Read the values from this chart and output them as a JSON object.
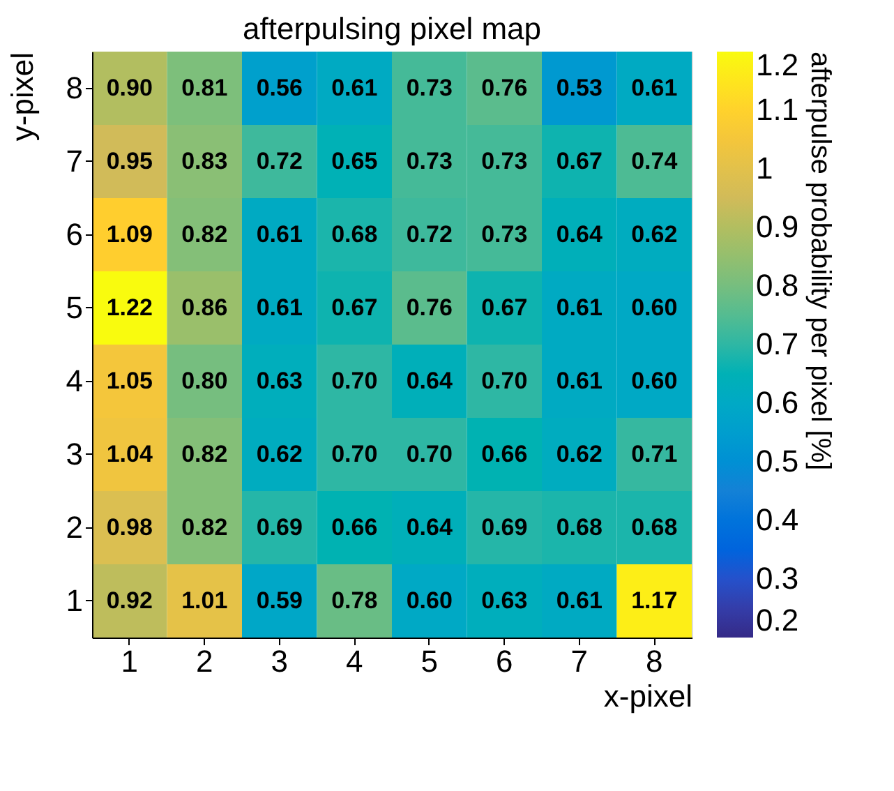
{
  "chart_data": {
    "type": "heatmap",
    "title": "afterpulsing pixel map",
    "xlabel": "x-pixel",
    "ylabel": "y-pixel",
    "clabel": "afterpulse probability per pixel  [%]",
    "categories": [
      "1",
      "2",
      "3",
      "4",
      "5",
      "6",
      "7",
      "8"
    ],
    "y_categories": [
      "8",
      "7",
      "6",
      "5",
      "4",
      "3",
      "2",
      "1"
    ],
    "cells": [
      [
        0.9,
        0.81,
        0.56,
        0.61,
        0.73,
        0.76,
        0.53,
        0.61
      ],
      [
        0.95,
        0.83,
        0.72,
        0.65,
        0.73,
        0.73,
        0.67,
        0.74
      ],
      [
        1.09,
        0.82,
        0.61,
        0.68,
        0.72,
        0.73,
        0.64,
        0.62
      ],
      [
        1.22,
        0.86,
        0.61,
        0.67,
        0.76,
        0.67,
        0.61,
        0.6
      ],
      [
        1.05,
        0.8,
        0.63,
        0.7,
        0.64,
        0.7,
        0.61,
        0.6
      ],
      [
        1.04,
        0.82,
        0.62,
        0.7,
        0.7,
        0.66,
        0.62,
        0.71
      ],
      [
        0.98,
        0.82,
        0.69,
        0.66,
        0.64,
        0.69,
        0.68,
        0.68
      ],
      [
        0.92,
        1.01,
        0.59,
        0.78,
        0.6,
        0.63,
        0.61,
        1.17
      ]
    ],
    "cell_labels": [
      [
        "0.90",
        "0.81",
        "0.56",
        "0.61",
        "0.73",
        "0.76",
        "0.53",
        "0.61"
      ],
      [
        "0.95",
        "0.83",
        "0.72",
        "0.65",
        "0.73",
        "0.73",
        "0.67",
        "0.74"
      ],
      [
        "1.09",
        "0.82",
        "0.61",
        "0.68",
        "0.72",
        "0.73",
        "0.64",
        "0.62"
      ],
      [
        "1.22",
        "0.86",
        "0.61",
        "0.67",
        "0.76",
        "0.67",
        "0.61",
        "0.60"
      ],
      [
        "1.05",
        "0.80",
        "0.63",
        "0.70",
        "0.64",
        "0.70",
        "0.61",
        "0.60"
      ],
      [
        "1.04",
        "0.82",
        "0.62",
        "0.70",
        "0.70",
        "0.66",
        "0.62",
        "0.71"
      ],
      [
        "0.98",
        "0.82",
        "0.69",
        "0.66",
        "0.64",
        "0.69",
        "0.68",
        "0.68"
      ],
      [
        "0.92",
        "1.01",
        "0.59",
        "0.78",
        "0.60",
        "0.63",
        "0.61",
        "1.17"
      ]
    ],
    "clim": [
      0.2,
      1.2
    ],
    "cticks": [
      0.2,
      0.3,
      0.4,
      0.5,
      0.6,
      0.7,
      0.8,
      0.9,
      1,
      1.1,
      1.2
    ],
    "grid": false
  }
}
